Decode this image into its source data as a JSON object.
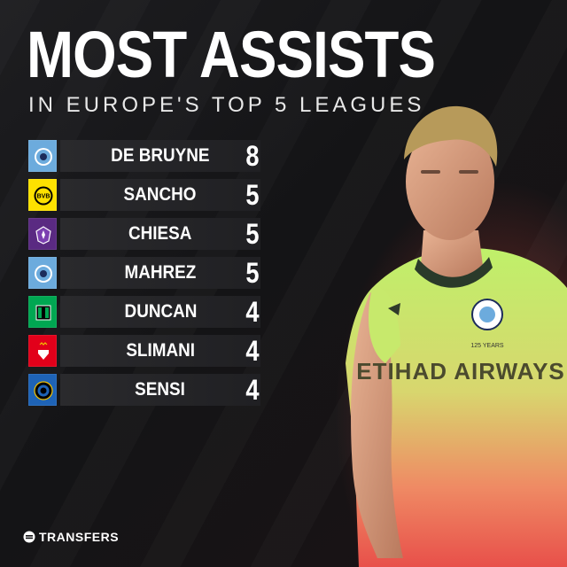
{
  "header": {
    "title": "MOST ASSISTS",
    "subtitle": "IN EUROPE'S TOP 5 LEAGUES"
  },
  "leaderboard": [
    {
      "name": "DE BRUYNE",
      "value": "8",
      "club_icon": "man-city-crest",
      "club_colors": [
        "#6cabdd",
        "#1c2c5b"
      ]
    },
    {
      "name": "SANCHO",
      "value": "5",
      "club_icon": "dortmund-crest",
      "club_colors": [
        "#fde100",
        "#000000"
      ]
    },
    {
      "name": "CHIESA",
      "value": "5",
      "club_icon": "fiorentina-crest",
      "club_colors": [
        "#5a2a82",
        "#ffffff"
      ]
    },
    {
      "name": "MAHREZ",
      "value": "5",
      "club_icon": "man-city-crest",
      "club_colors": [
        "#6cabdd",
        "#1c2c5b"
      ]
    },
    {
      "name": "DUNCAN",
      "value": "4",
      "club_icon": "sassuolo-crest",
      "club_colors": [
        "#00a752",
        "#000000"
      ]
    },
    {
      "name": "SLIMANI",
      "value": "4",
      "club_icon": "monaco-crest",
      "club_colors": [
        "#e2001a",
        "#ffffff"
      ]
    },
    {
      "name": "SENSI",
      "value": "4",
      "club_icon": "inter-crest",
      "club_colors": [
        "#1e63b6",
        "#000000"
      ]
    }
  ],
  "player_image": {
    "icon": "player-photo",
    "shirt_text": "ETIHAD AIRWAYS",
    "badge_text": "125 YEARS"
  },
  "brand": {
    "name": "TRANSFERS",
    "icon": "transfers-logo-icon"
  },
  "colors": {
    "accent_red": "#d7463c",
    "shirt_green": "#b8e86a",
    "row_bar": "#2a2a2d"
  }
}
